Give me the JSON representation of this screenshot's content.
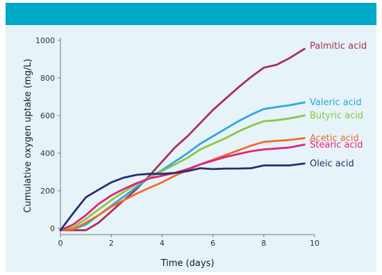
{
  "chart_data": {
    "type": "line",
    "title": "",
    "xlabel": "Time (days)",
    "ylabel": "Cumulative oxygen uptake (mg/L)",
    "xlim": [
      0,
      10
    ],
    "ylim": [
      0,
      1000
    ],
    "xticks": [
      0,
      2,
      4,
      6,
      8,
      10
    ],
    "yticks": [
      0,
      200,
      400,
      600,
      800,
      1000
    ],
    "grid": false,
    "legend": "inline labels at right end of lines",
    "series": [
      {
        "name": "Palmitic acid",
        "color": "#a8324f",
        "x": [
          0,
          0.5,
          1,
          1.5,
          2,
          2.5,
          3,
          3.5,
          4,
          4.5,
          5,
          5.5,
          6,
          6.5,
          7,
          7.5,
          8,
          8.5,
          9,
          9.6
        ],
        "y": [
          -10,
          -10,
          -10,
          30,
          90,
          150,
          210,
          280,
          355,
          430,
          490,
          560,
          630,
          690,
          750,
          805,
          855,
          870,
          905,
          955
        ]
      },
      {
        "name": "Valeric acid",
        "color": "#2aa8e0",
        "x": [
          0,
          0.5,
          1,
          1.5,
          2,
          2.5,
          3,
          3.5,
          4,
          4.5,
          5,
          5.5,
          6,
          6.5,
          7,
          7.5,
          8,
          8.5,
          9,
          9.6
        ],
        "y": [
          -10,
          -5,
          20,
          70,
          120,
          170,
          220,
          270,
          310,
          355,
          400,
          450,
          490,
          530,
          570,
          605,
          635,
          645,
          655,
          670
        ]
      },
      {
        "name": "Butyric acid",
        "color": "#8cc63f",
        "x": [
          0,
          0.5,
          1,
          1.5,
          2,
          2.5,
          3,
          3.5,
          4,
          4.5,
          5,
          5.5,
          6,
          6.5,
          7,
          7.5,
          8,
          8.5,
          9,
          9.6
        ],
        "y": [
          -10,
          5,
          50,
          100,
          150,
          195,
          235,
          270,
          305,
          340,
          375,
          420,
          450,
          480,
          515,
          545,
          570,
          575,
          585,
          600
        ]
      },
      {
        "name": "Acetic acid",
        "color": "#f06b2a",
        "x": [
          0,
          0.5,
          1,
          1.5,
          2,
          2.5,
          3,
          3.5,
          4,
          4.5,
          5,
          5.5,
          6,
          6.5,
          7,
          7.5,
          8,
          8.5,
          9,
          9.6
        ],
        "y": [
          -10,
          -5,
          30,
          70,
          115,
          150,
          185,
          215,
          245,
          280,
          310,
          340,
          365,
          390,
          415,
          440,
          460,
          465,
          470,
          480
        ]
      },
      {
        "name": "Stearic acid",
        "color": "#e5217d",
        "x": [
          0,
          0.5,
          1,
          1.5,
          2,
          2.5,
          3,
          3.5,
          4,
          4.5,
          5,
          5.5,
          6,
          6.5,
          7,
          7.5,
          8,
          8.5,
          9,
          9.6
        ],
        "y": [
          -10,
          20,
          70,
          130,
          175,
          210,
          240,
          265,
          280,
          295,
          315,
          340,
          360,
          380,
          395,
          410,
          420,
          425,
          430,
          445
        ]
      },
      {
        "name": "Oleic acid",
        "color": "#25306e",
        "x": [
          0,
          0.5,
          1,
          1.5,
          2,
          2.5,
          3,
          3.5,
          4,
          4.5,
          5,
          5.5,
          6,
          6.5,
          7,
          7.5,
          8,
          8.5,
          9,
          9.6
        ],
        "y": [
          -10,
          80,
          165,
          205,
          245,
          270,
          285,
          290,
          290,
          295,
          305,
          320,
          315,
          318,
          318,
          320,
          335,
          335,
          335,
          345
        ]
      }
    ]
  }
}
